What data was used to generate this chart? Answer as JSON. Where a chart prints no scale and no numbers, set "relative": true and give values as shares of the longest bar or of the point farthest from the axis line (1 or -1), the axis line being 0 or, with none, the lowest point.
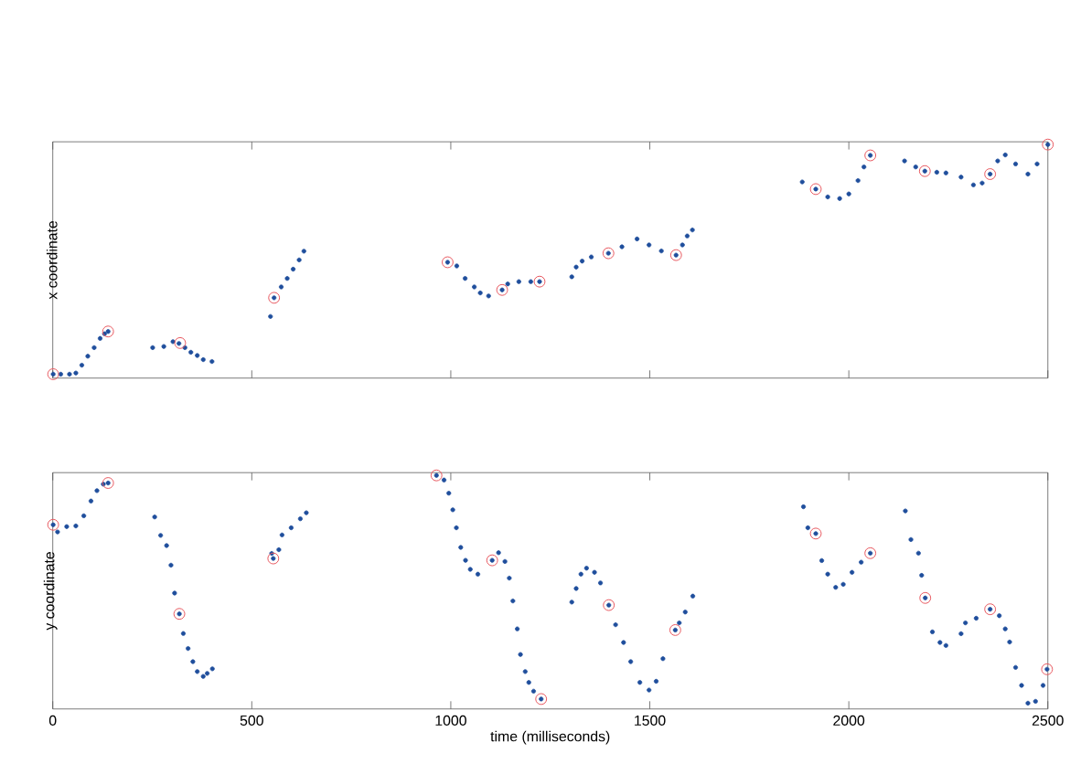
{
  "chart_data": [
    {
      "type": "scatter",
      "ylabel": "x coordinate",
      "xlim": [
        0,
        2500
      ],
      "xticks": [
        0,
        500,
        1000,
        1500,
        2000,
        2500
      ],
      "relative": true,
      "tick_labels": false,
      "marker": "circle",
      "series": [
        {
          "color": "#1f4e9c",
          "x": [
            1,
            20,
            42,
            58,
            73,
            88,
            104,
            119,
            130,
            139,
            251,
            279,
            302,
            317,
            332,
            347,
            363,
            378,
            400,
            547,
            556,
            574,
            589,
            604,
            619,
            631,
            992,
            1015,
            1036,
            1059,
            1074,
            1095,
            1129,
            1143,
            1171,
            1201,
            1223,
            1304,
            1315,
            1330,
            1353,
            1396,
            1430,
            1468,
            1498,
            1529,
            1566,
            1582,
            1594,
            1607,
            1883,
            1917,
            1947,
            1977,
            2000,
            2023,
            2038,
            2054,
            2140,
            2168,
            2191,
            2221,
            2244,
            2282,
            2313,
            2335,
            2355,
            2374,
            2393,
            2419,
            2450,
            2473,
            2500
          ],
          "values": [
            0.005,
            0.005,
            0.005,
            0.01,
            0.044,
            0.083,
            0.12,
            0.16,
            0.18,
            0.19,
            0.12,
            0.125,
            0.146,
            0.138,
            0.12,
            0.1,
            0.086,
            0.068,
            0.06,
            0.255,
            0.336,
            0.383,
            0.42,
            0.46,
            0.5,
            0.538,
            0.49,
            0.474,
            0.42,
            0.383,
            0.357,
            0.344,
            0.37,
            0.396,
            0.406,
            0.406,
            0.406,
            0.427,
            0.469,
            0.495,
            0.513,
            0.529,
            0.557,
            0.591,
            0.565,
            0.539,
            0.521,
            0.565,
            0.604,
            0.63,
            0.838,
            0.807,
            0.773,
            0.766,
            0.786,
            0.844,
            0.903,
            0.953,
            0.929,
            0.903,
            0.885,
            0.88,
            0.877,
            0.859,
            0.825,
            0.833,
            0.872,
            0.929,
            0.955,
            0.916,
            0.872,
            0.916,
            1.0
          ]
        },
        {
          "color": "#e8585f",
          "x": [
            1,
            139,
            320,
            556,
            992,
            1129,
            1223,
            1396,
            1566,
            1917,
            2054,
            2191,
            2355,
            2500
          ],
          "values": [
            0.005,
            0.19,
            0.14,
            0.336,
            0.49,
            0.37,
            0.406,
            0.529,
            0.521,
            0.807,
            0.953,
            0.885,
            0.872,
            1.0
          ]
        }
      ]
    },
    {
      "type": "scatter",
      "xlabel": "time (milliseconds)",
      "ylabel": "y coordinate",
      "xlim": [
        0,
        2500
      ],
      "xticks": [
        0,
        500,
        1000,
        1500,
        2000,
        2500
      ],
      "relative": true,
      "tick_labels": "x",
      "marker": "circle",
      "series": [
        {
          "color": "#1f4e9c",
          "x": [
            1,
            12,
            35,
            58,
            78,
            96,
            111,
            127,
            139,
            256,
            271,
            286,
            297,
            306,
            318,
            328,
            340,
            352,
            363,
            378,
            388,
            401,
            550,
            554,
            568,
            576,
            599,
            622,
            637,
            964,
            983,
            995,
            1005,
            1014,
            1025,
            1037,
            1049,
            1068,
            1104,
            1120,
            1136,
            1147,
            1156,
            1167,
            1175,
            1187,
            1196,
            1208,
            1227,
            1304,
            1315,
            1327,
            1341,
            1361,
            1376,
            1397,
            1414,
            1434,
            1452,
            1475,
            1498,
            1516,
            1533,
            1564,
            1574,
            1589,
            1608,
            1886,
            1897,
            1917,
            1932,
            1947,
            1967,
            1986,
            2008,
            2031,
            2054,
            2142,
            2156,
            2175,
            2183,
            2192,
            2210,
            2229,
            2244,
            2282,
            2293,
            2320,
            2355,
            2378,
            2393,
            2404,
            2419,
            2434,
            2450,
            2469,
            2488,
            2498
          ],
          "values": [
            0.786,
            0.755,
            0.778,
            0.781,
            0.825,
            0.889,
            0.934,
            0.962,
            0.967,
            0.82,
            0.74,
            0.696,
            0.611,
            0.49,
            0.4,
            0.315,
            0.25,
            0.193,
            0.15,
            0.129,
            0.142,
            0.162,
            0.662,
            0.64,
            0.678,
            0.742,
            0.773,
            0.812,
            0.838,
            1.0,
            0.98,
            0.923,
            0.851,
            0.773,
            0.688,
            0.632,
            0.593,
            0.572,
            0.632,
            0.665,
            0.627,
            0.555,
            0.456,
            0.335,
            0.224,
            0.15,
            0.103,
            0.065,
            0.031,
            0.451,
            0.51,
            0.572,
            0.598,
            0.58,
            0.534,
            0.438,
            0.353,
            0.276,
            0.193,
            0.103,
            0.07,
            0.108,
            0.206,
            0.33,
            0.361,
            0.408,
            0.477,
            0.864,
            0.773,
            0.748,
            0.631,
            0.572,
            0.515,
            0.528,
            0.58,
            0.624,
            0.663,
            0.846,
            0.722,
            0.663,
            0.567,
            0.469,
            0.322,
            0.276,
            0.263,
            0.314,
            0.361,
            0.381,
            0.42,
            0.392,
            0.335,
            0.278,
            0.168,
            0.09,
            0.013,
            0.021,
            0.09,
            0.16
          ]
        },
        {
          "color": "#e8585f",
          "x": [
            1,
            139,
            318,
            554,
            964,
            1104,
            1227,
            1397,
            1564,
            1917,
            2054,
            2192,
            2355,
            2498
          ],
          "values": [
            0.786,
            0.967,
            0.4,
            0.64,
            1.0,
            0.632,
            0.031,
            0.438,
            0.33,
            0.748,
            0.663,
            0.469,
            0.42,
            0.16
          ]
        }
      ]
    }
  ]
}
